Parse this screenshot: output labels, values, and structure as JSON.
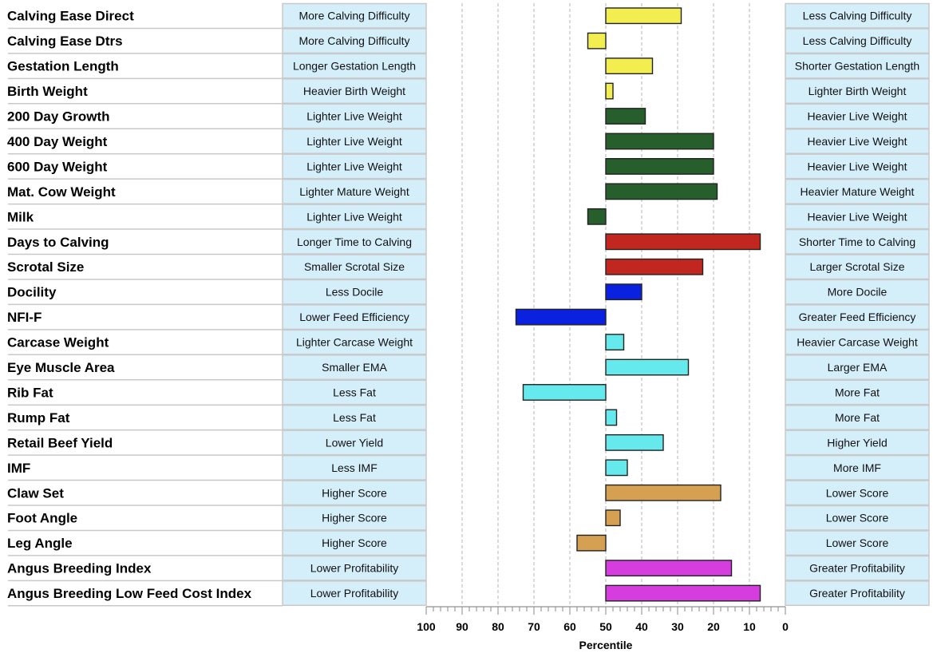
{
  "chart_data": {
    "type": "bar",
    "orientation": "horizontal",
    "xlabel": "Percentile",
    "xlim": [
      100,
      0
    ],
    "baseline": 50,
    "x_ticks": [
      "100",
      "90",
      "80",
      "70",
      "60",
      "50",
      "40",
      "30",
      "20",
      "10",
      "0"
    ],
    "groups": {
      "calving": "#f2ee4f",
      "growth": "#275f2c",
      "fertility": "#c1271e",
      "temperament": "#0a22e0",
      "carcase": "#66e9ec",
      "structure": "#d6a052",
      "index": "#d63ddf"
    },
    "traits": [
      {
        "name": "Calving Ease Direct",
        "left": "More Calving Difficulty",
        "right": "Less Calving Difficulty",
        "percentile": 29,
        "group": "calving"
      },
      {
        "name": "Calving Ease Dtrs",
        "left": "More Calving Difficulty",
        "right": "Less Calving Difficulty",
        "percentile": 55,
        "group": "calving"
      },
      {
        "name": "Gestation Length",
        "left": "Longer Gestation Length",
        "right": "Shorter Gestation Length",
        "percentile": 37,
        "group": "calving"
      },
      {
        "name": "Birth Weight",
        "left": "Heavier Birth Weight",
        "right": "Lighter Birth Weight",
        "percentile": 48,
        "group": "calving"
      },
      {
        "name": "200 Day Growth",
        "left": "Lighter Live Weight",
        "right": "Heavier Live Weight",
        "percentile": 39,
        "group": "growth"
      },
      {
        "name": "400 Day Weight",
        "left": "Lighter Live Weight",
        "right": "Heavier Live Weight",
        "percentile": 20,
        "group": "growth"
      },
      {
        "name": "600 Day Weight",
        "left": "Lighter Live Weight",
        "right": "Heavier Live Weight",
        "percentile": 20,
        "group": "growth"
      },
      {
        "name": "Mat. Cow Weight",
        "left": "Lighter Mature Weight",
        "right": "Heavier Mature Weight",
        "percentile": 19,
        "group": "growth"
      },
      {
        "name": "Milk",
        "left": "Lighter Live Weight",
        "right": "Heavier Live Weight",
        "percentile": 55,
        "group": "growth"
      },
      {
        "name": "Days to Calving",
        "left": "Longer Time to Calving",
        "right": "Shorter Time to Calving",
        "percentile": 7,
        "group": "fertility"
      },
      {
        "name": "Scrotal Size",
        "left": "Smaller Scrotal Size",
        "right": "Larger Scrotal Size",
        "percentile": 23,
        "group": "fertility"
      },
      {
        "name": "Docility",
        "left": "Less Docile",
        "right": "More Docile",
        "percentile": 40,
        "group": "temperament"
      },
      {
        "name": "NFI-F",
        "left": "Lower Feed Efficiency",
        "right": "Greater Feed Efficiency",
        "percentile": 75,
        "group": "temperament"
      },
      {
        "name": "Carcase Weight",
        "left": "Lighter Carcase Weight",
        "right": "Heavier Carcase Weight",
        "percentile": 45,
        "group": "carcase"
      },
      {
        "name": "Eye Muscle Area",
        "left": "Smaller EMA",
        "right": "Larger EMA",
        "percentile": 27,
        "group": "carcase"
      },
      {
        "name": "Rib Fat",
        "left": "Less Fat",
        "right": "More Fat",
        "percentile": 73,
        "group": "carcase"
      },
      {
        "name": "Rump Fat",
        "left": "Less Fat",
        "right": "More Fat",
        "percentile": 47,
        "group": "carcase"
      },
      {
        "name": "Retail Beef Yield",
        "left": "Lower Yield",
        "right": "Higher Yield",
        "percentile": 34,
        "group": "carcase"
      },
      {
        "name": "IMF",
        "left": "Less IMF",
        "right": "More IMF",
        "percentile": 44,
        "group": "carcase"
      },
      {
        "name": "Claw Set",
        "left": "Higher Score",
        "right": "Lower Score",
        "percentile": 18,
        "group": "structure"
      },
      {
        "name": "Foot Angle",
        "left": "Higher Score",
        "right": "Lower Score",
        "percentile": 46,
        "group": "structure"
      },
      {
        "name": "Leg Angle",
        "left": "Higher Score",
        "right": "Lower Score",
        "percentile": 58,
        "group": "structure"
      },
      {
        "name": "Angus Breeding Index",
        "left": "Lower Profitability",
        "right": "Greater Profitability",
        "percentile": 15,
        "group": "index"
      },
      {
        "name": "Angus Breeding Low Feed Cost Index",
        "left": "Lower Profitability",
        "right": "Greater Profitability",
        "percentile": 7,
        "group": "index"
      }
    ]
  }
}
